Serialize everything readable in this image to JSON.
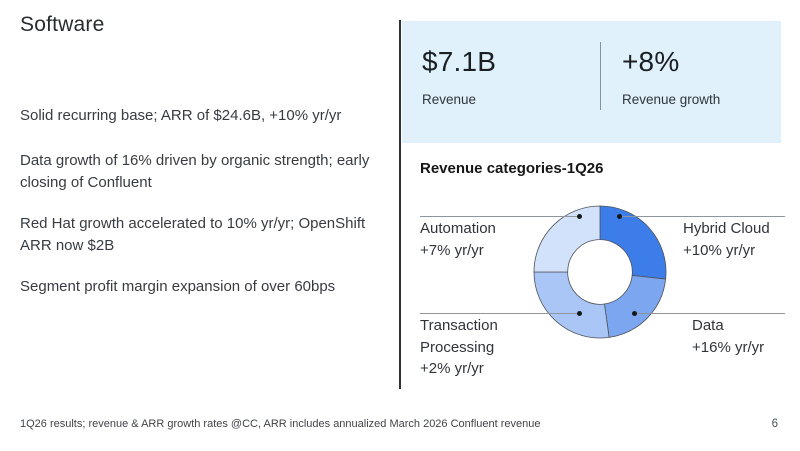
{
  "slide": {
    "title": "Software",
    "bullets": [
      "Solid recurring base; ARR of $24.6B, +10% yr/yr",
      "Data growth of 16% driven by organic strength; early closing of Confluent",
      "Red Hat growth accelerated to 10% yr/yr; OpenShift ARR now $2B",
      "Segment profit margin expansion of over 60bps"
    ],
    "footnote": "1Q26 results; revenue & ARR growth rates @CC, ARR includes annualized March 2026 Confluent revenue",
    "page_number": "6"
  },
  "metrics": {
    "panel_bg": "#e1f1fb",
    "revenue_value": "$7.1B",
    "revenue_label": "Revenue",
    "growth_value": "+8%",
    "growth_label": "Revenue growth"
  },
  "chart_data": {
    "type": "pie",
    "subtype": "donut",
    "title": "Revenue categories-1Q26",
    "direction": "clockwise",
    "start_angle_deg": 0,
    "inner_radius_ratio": 0.49,
    "stroke_color": "#4d5358",
    "segments": [
      {
        "label": "Hybrid Cloud",
        "growth": "+10% yr/yr",
        "share_pct": 26.7,
        "color": "#3d7de9"
      },
      {
        "label": "Data",
        "growth": "+16% yr/yr",
        "share_pct": 21.1,
        "color": "#7ca7f0"
      },
      {
        "label": "Transaction Processing",
        "growth": "+2% yr/yr",
        "share_pct": 27.2,
        "color": "#a9c6f6"
      },
      {
        "label": "Automation",
        "growth": "+7% yr/yr",
        "share_pct": 25.0,
        "color": "#d3e2fb"
      }
    ]
  }
}
